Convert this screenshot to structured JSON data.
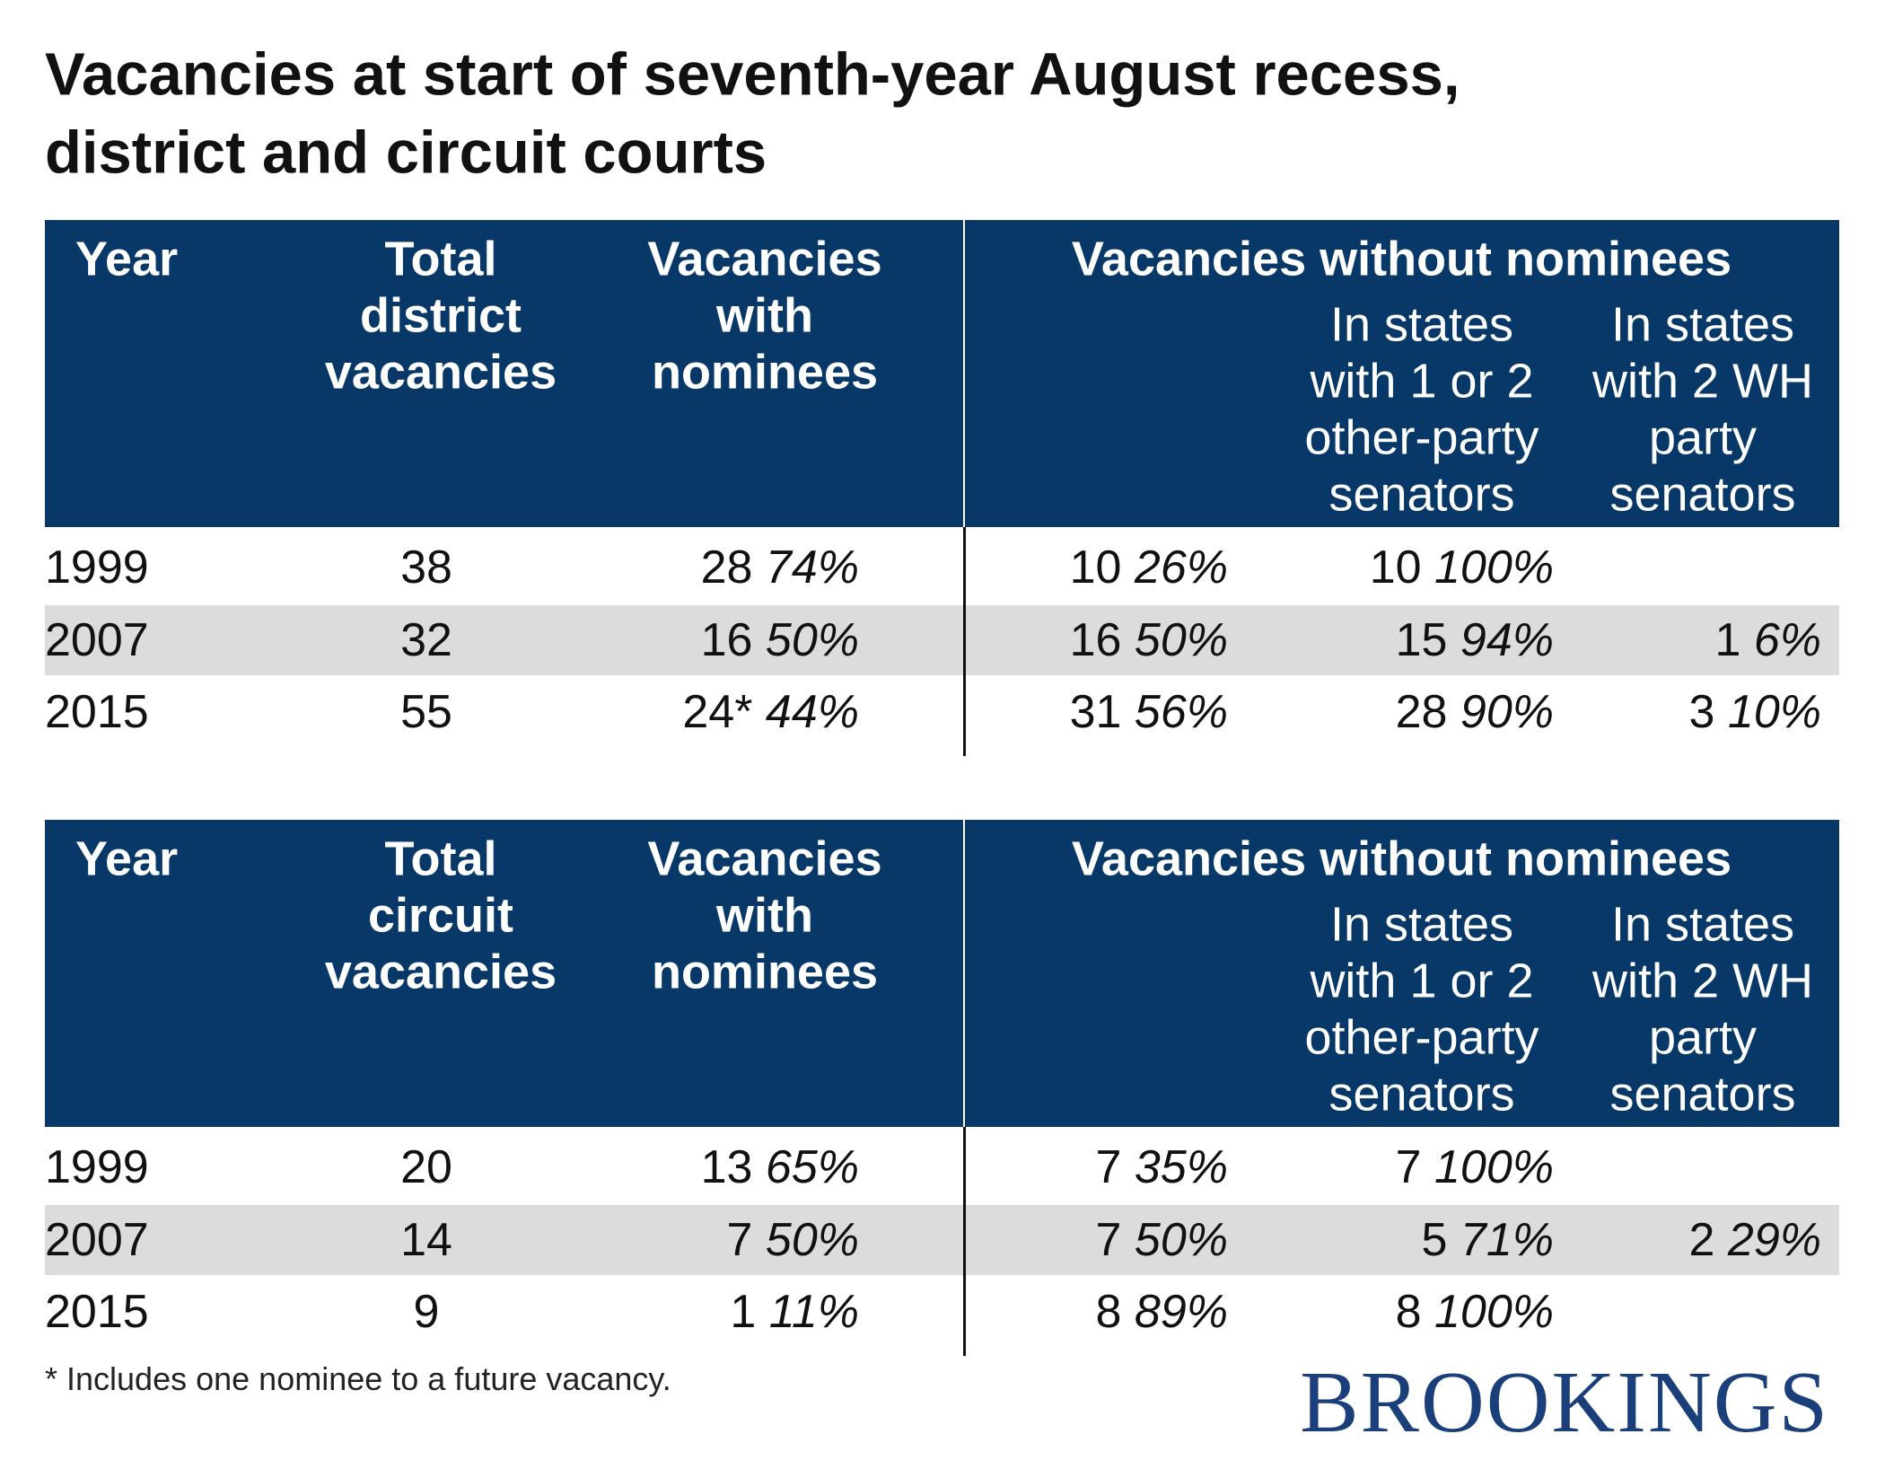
{
  "title": [
    "Vacancies at start of seventh-year August recess,",
    "district and circuit courts"
  ],
  "tables": [
    {
      "headers": {
        "year": "Year",
        "total": [
          "Total",
          "district",
          "vacancies"
        ],
        "with": [
          "Vacancies",
          "with",
          "nominees"
        ],
        "without": "Vacancies without nominees",
        "other_party": [
          "In states",
          "with 1 or 2",
          "other-party",
          "senators"
        ],
        "wh_party": [
          "In states",
          "with 2 WH",
          "party",
          "senators"
        ]
      },
      "rows": [
        {
          "year": "1999",
          "total": "38",
          "with": {
            "n": "28",
            "pct": "74%"
          },
          "without": {
            "n": "10",
            "pct": "26%"
          },
          "other_party": {
            "n": "10",
            "pct": "100%"
          }
        },
        {
          "year": "2007",
          "total": "32",
          "with": {
            "n": "16",
            "pct": "50%"
          },
          "without": {
            "n": "16",
            "pct": "50%"
          },
          "other_party": {
            "n": "15",
            "pct": "94%"
          },
          "wh_party": {
            "n": "1",
            "pct": "6%"
          }
        },
        {
          "year": "2015",
          "total": "55",
          "with": {
            "n": "24*",
            "pct": "44%"
          },
          "without": {
            "n": "31",
            "pct": "56%"
          },
          "other_party": {
            "n": "28",
            "pct": "90%"
          },
          "wh_party": {
            "n": "3",
            "pct": "10%"
          }
        }
      ]
    },
    {
      "headers": {
        "year": "Year",
        "total": [
          "Total",
          "circuit",
          "vacancies"
        ],
        "with": [
          "Vacancies",
          "with",
          "nominees"
        ],
        "without": "Vacancies without nominees",
        "other_party": [
          "In states",
          "with 1 or 2",
          "other-party",
          "senators"
        ],
        "wh_party": [
          "In states",
          "with 2 WH",
          "party",
          "senators"
        ]
      },
      "rows": [
        {
          "year": "1999",
          "total": "20",
          "with": {
            "n": "13",
            "pct": "65%"
          },
          "without": {
            "n": "7",
            "pct": "35%"
          },
          "other_party": {
            "n": "7",
            "pct": "100%"
          }
        },
        {
          "year": "2007",
          "total": "14",
          "with": {
            "n": "7",
            "pct": "50%"
          },
          "without": {
            "n": "7",
            "pct": "50%"
          },
          "other_party": {
            "n": "5",
            "pct": "71%"
          },
          "wh_party": {
            "n": "2",
            "pct": "29%"
          }
        },
        {
          "year": "2015",
          "total": "9",
          "with": {
            "n": "1",
            "pct": "11%"
          },
          "without": {
            "n": "8",
            "pct": "89%"
          },
          "other_party": {
            "n": "8",
            "pct": "100%"
          }
        }
      ]
    }
  ],
  "footnote": "* Includes one nominee to a future vacancy.",
  "logo": "BROOKINGS"
}
